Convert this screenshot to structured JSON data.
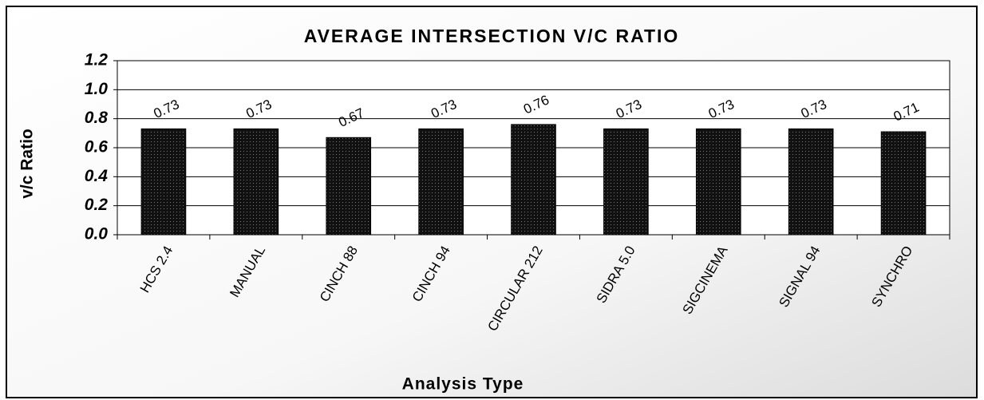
{
  "chart_data": {
    "type": "bar",
    "title": "AVERAGE INTERSECTION V/C RATIO",
    "x_label": "Analysis Type",
    "y_label": "v/c Ratio",
    "categories": [
      "HCS 2.4",
      "MANUAL",
      "CINCH 88",
      "CINCH 94",
      "CIRCULAR 212",
      "SIDRA 5.0",
      "SIGCINEMA",
      "SIGNAL 94",
      "SYNCHRO"
    ],
    "values": [
      0.73,
      0.73,
      0.67,
      0.73,
      0.76,
      0.73,
      0.73,
      0.73,
      0.71
    ],
    "color": "#111111",
    "ylim": [
      0,
      1.2
    ],
    "yticks": [
      {
        "value": 0,
        "label": "0.0"
      },
      0.2,
      0.4,
      0.6,
      0.8,
      {
        "value": 1,
        "label": "1.0"
      },
      1.2
    ],
    "grid": true
  }
}
